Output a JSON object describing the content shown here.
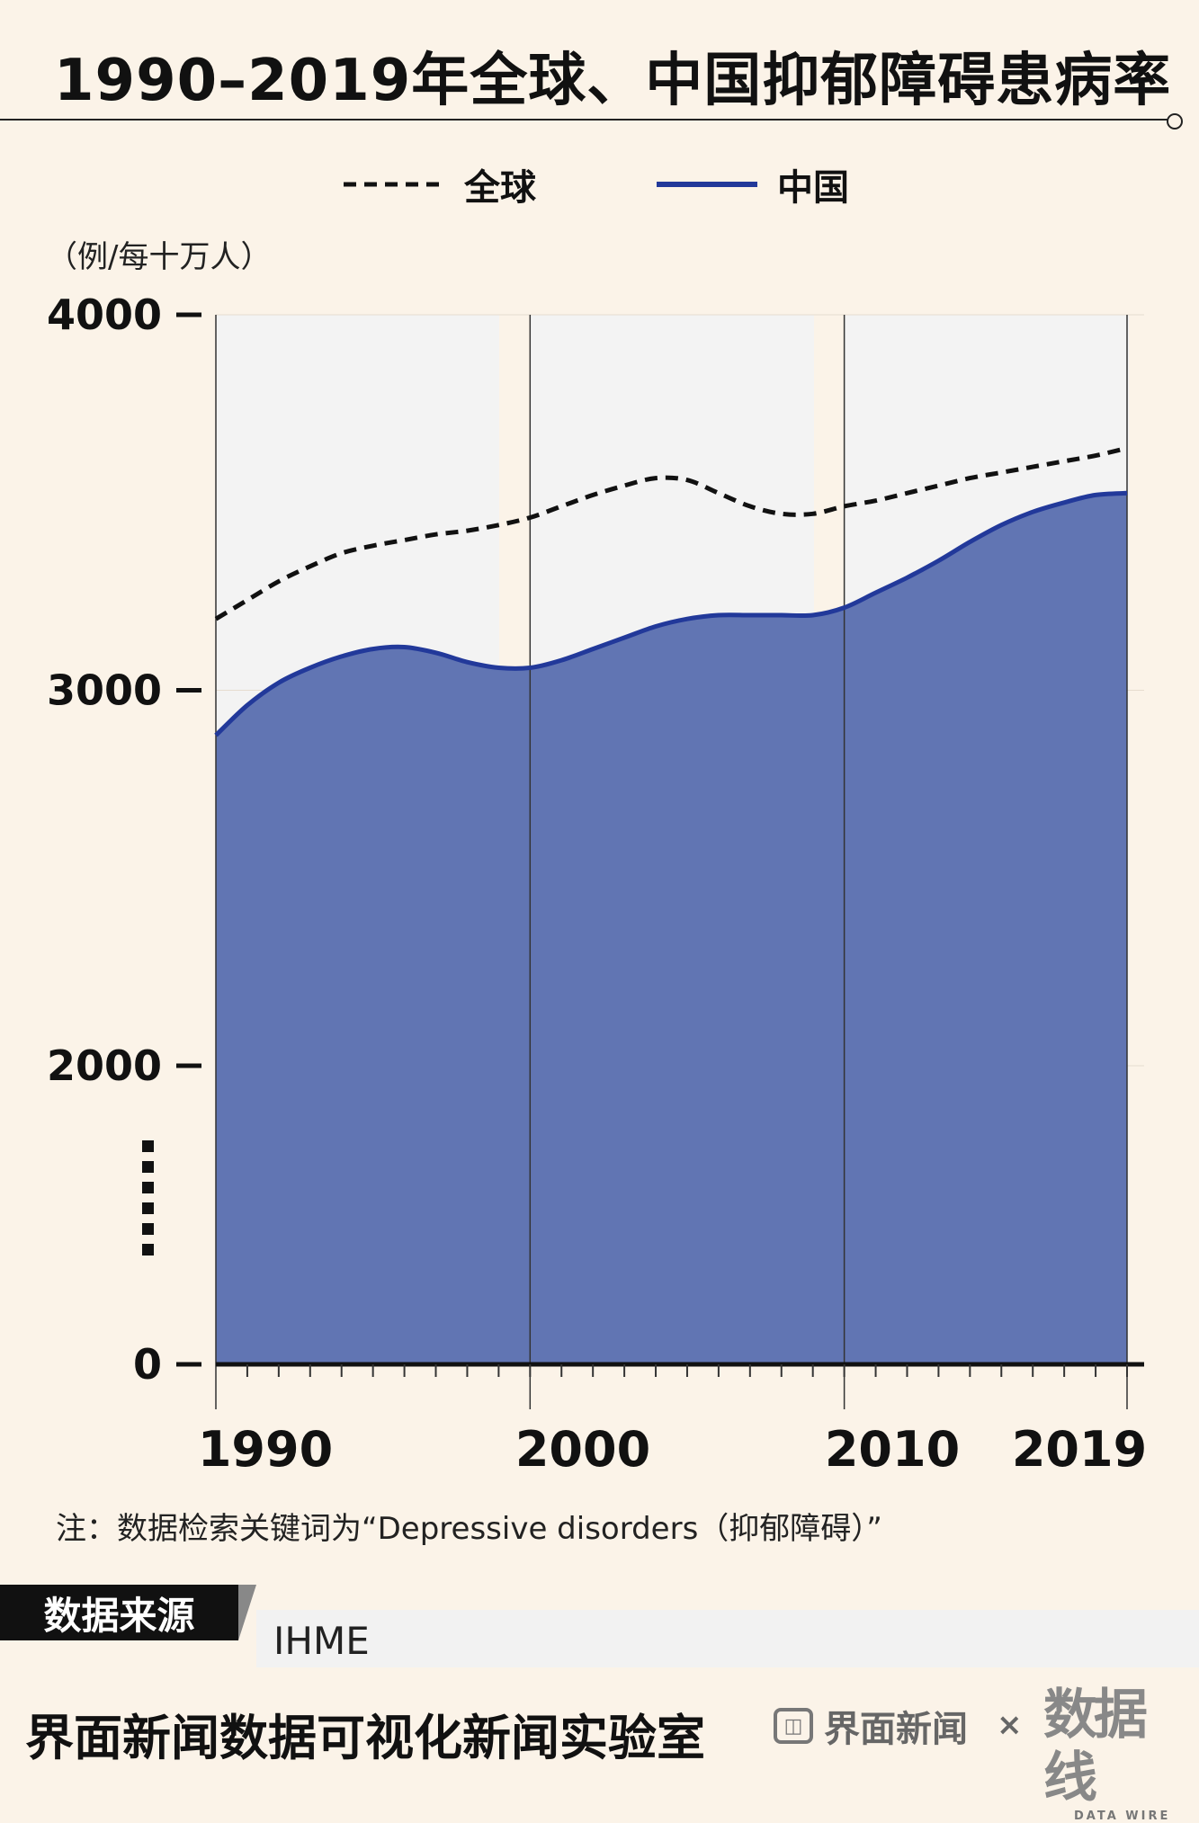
{
  "title": "1990–2019年全球、中国抑郁障碍患病率",
  "unit_label": "（例/每十万人）",
  "legend": {
    "global": "全球",
    "china": "中国"
  },
  "note": "注：数据检索关键词为“Depressive disorders（抑郁障碍）”",
  "source": {
    "label": "数据来源",
    "value": "IHME"
  },
  "footer": {
    "title": "界面新闻数据可视化新闻实验室",
    "brand": "界面新闻",
    "times": "×",
    "datawire_cn": "数据线",
    "datawire_en": "DATA WIRE"
  },
  "colors": {
    "china_line": "#22399a",
    "china_fill": "#6175b3",
    "global_line": "#111111",
    "background": "#fbf3e8",
    "panel": "#f3f3f3"
  },
  "chart_data": {
    "type": "area",
    "title": "1990–2019年全球、中国抑郁障碍患病率",
    "ylabel": "（例/每十万人）",
    "xlabel": "",
    "x": [
      1990,
      1991,
      1992,
      1993,
      1994,
      1995,
      1996,
      1997,
      1998,
      1999,
      2000,
      2001,
      2002,
      2003,
      2004,
      2005,
      2006,
      2007,
      2008,
      2009,
      2010,
      2011,
      2012,
      2013,
      2014,
      2015,
      2016,
      2017,
      2018,
      2019
    ],
    "x_ticks": [
      "1990",
      "2000",
      "2010",
      "2019"
    ],
    "y_ticks": [
      "0",
      "2000",
      "3000",
      "4000"
    ],
    "y_axis_break": true,
    "ylim": [
      0,
      4000
    ],
    "series": [
      {
        "name": "全球",
        "style": "dashed",
        "values": [
          3190,
          3240,
          3290,
          3330,
          3365,
          3385,
          3400,
          3415,
          3425,
          3440,
          3460,
          3490,
          3520,
          3545,
          3565,
          3560,
          3525,
          3490,
          3470,
          3470,
          3490,
          3505,
          3525,
          3545,
          3565,
          3580,
          3595,
          3610,
          3625,
          3645
        ]
      },
      {
        "name": "中国",
        "style": "solid-filled",
        "values": [
          2880,
          2960,
          3020,
          3060,
          3090,
          3110,
          3115,
          3100,
          3075,
          3060,
          3060,
          3080,
          3110,
          3140,
          3170,
          3190,
          3200,
          3200,
          3200,
          3200,
          3220,
          3260,
          3300,
          3345,
          3395,
          3440,
          3475,
          3500,
          3520,
          3525
        ]
      }
    ],
    "grid": true,
    "legend_position": "top-center"
  }
}
